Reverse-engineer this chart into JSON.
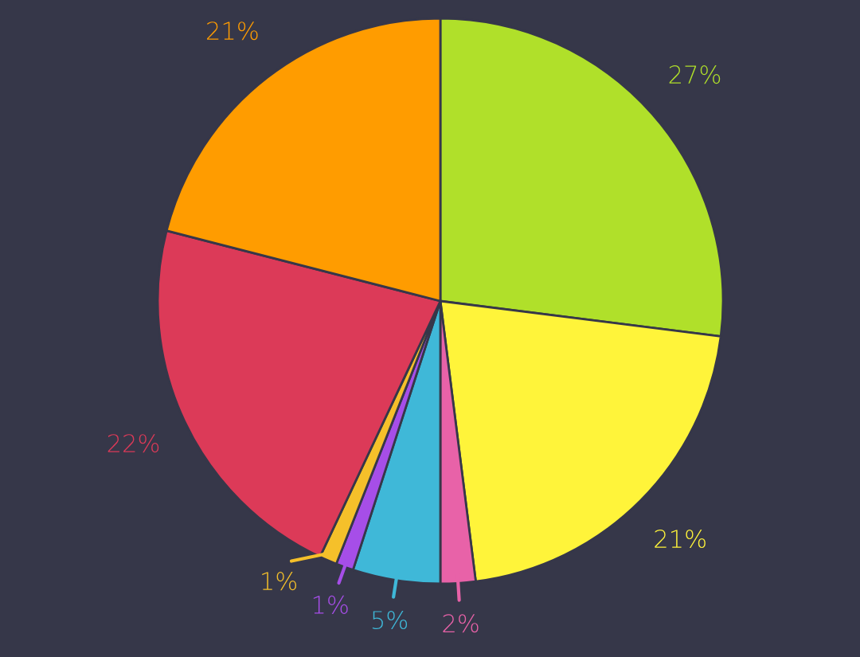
{
  "chart_data": {
    "type": "pie",
    "categories": [
      null,
      null,
      null,
      null,
      null,
      null,
      null,
      null
    ],
    "values": [
      27,
      21,
      2,
      5,
      1,
      1,
      22,
      21
    ],
    "colors": [
      "#b0e02a",
      "#fff43a",
      "#e862a8",
      "#3fb8d8",
      "#a64ee8",
      "#f5c02a",
      "#dc3a58",
      "#ff9c00"
    ],
    "value_labels": [
      "27%",
      "21%",
      "2%",
      "5%",
      "1%",
      "1%",
      "22%",
      "21%"
    ]
  }
}
